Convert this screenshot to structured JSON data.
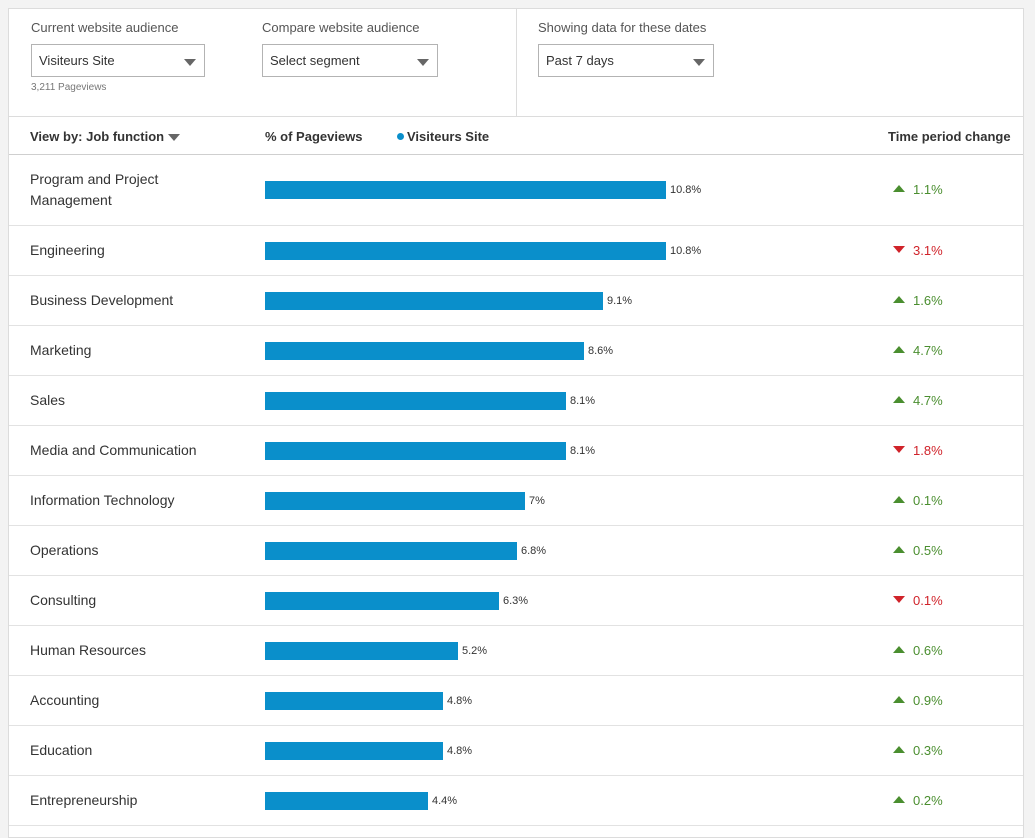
{
  "filters": {
    "current": {
      "label": "Current website audience",
      "value": "Visiteurs Site",
      "note": "3,211 Pageviews"
    },
    "compare": {
      "label": "Compare website audience",
      "value": "Select segment"
    },
    "dates": {
      "label": "Showing data for these dates",
      "value": "Past 7 days"
    }
  },
  "table_header": {
    "view_by": "View by: Job function",
    "metric": "% of Pageviews",
    "legend": "Visiteurs Site",
    "change": "Time period change"
  },
  "colors": {
    "bar": "#0a8fcb",
    "up": "#4a8e2f",
    "down": "#d0232a"
  },
  "chart_data": {
    "type": "bar",
    "categories": [
      "Program and Project Management",
      "Engineering",
      "Business Development",
      "Marketing",
      "Sales",
      "Media and Communication",
      "Information Technology",
      "Operations",
      "Consulting",
      "Human Resources",
      "Accounting",
      "Education",
      "Entrepreneurship"
    ],
    "values": [
      10.8,
      10.8,
      9.1,
      8.6,
      8.1,
      8.1,
      7,
      6.8,
      6.3,
      5.2,
      4.8,
      4.8,
      4.4
    ],
    "value_labels": [
      "10.8%",
      "10.8%",
      "9.1%",
      "8.6%",
      "8.1%",
      "8.1%",
      "7%",
      "6.8%",
      "6.3%",
      "5.2%",
      "4.8%",
      "4.8%",
      "4.4%"
    ],
    "changes": [
      {
        "dir": "up",
        "text": "1.1%"
      },
      {
        "dir": "down",
        "text": "3.1%"
      },
      {
        "dir": "up",
        "text": "1.6%"
      },
      {
        "dir": "up",
        "text": "4.7%"
      },
      {
        "dir": "up",
        "text": "4.7%"
      },
      {
        "dir": "down",
        "text": "1.8%"
      },
      {
        "dir": "up",
        "text": "0.1%"
      },
      {
        "dir": "up",
        "text": "0.5%"
      },
      {
        "dir": "down",
        "text": "0.1%"
      },
      {
        "dir": "up",
        "text": "0.6%"
      },
      {
        "dir": "up",
        "text": "0.9%"
      },
      {
        "dir": "up",
        "text": "0.3%"
      },
      {
        "dir": "up",
        "text": "0.2%"
      }
    ],
    "xlim": [
      0,
      10.8
    ],
    "series": [
      {
        "name": "Visiteurs Site"
      }
    ]
  }
}
